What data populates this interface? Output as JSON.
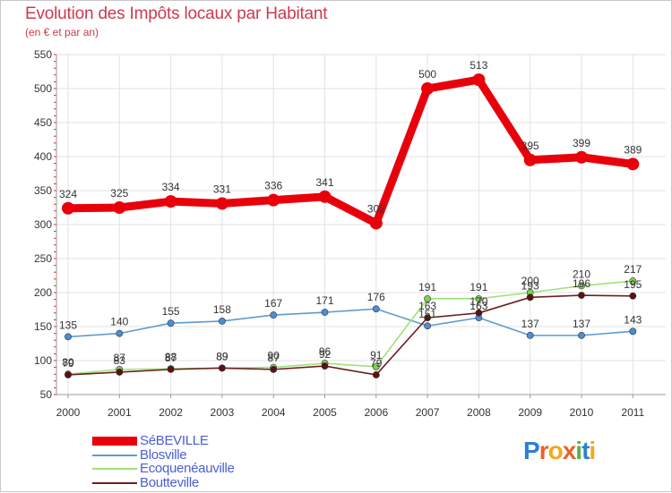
{
  "title": "Evolution des Impôts locaux par Habitant",
  "subtitle": "(en € et par an)",
  "logo": {
    "text": "Proxiti",
    "letter_colors": [
      "#2f7fd1",
      "#e8632c",
      "#f1a81c",
      "#e8632c",
      "#56b53f",
      "#2f7fd1",
      "#f1a81c"
    ]
  },
  "chart_data": {
    "type": "line",
    "title": "Evolution des Impôts locaux par Habitant",
    "subtitle": "(en € et par an)",
    "x": [
      "2000",
      "2001",
      "2002",
      "2003",
      "2004",
      "2005",
      "2006",
      "2007",
      "2008",
      "2009",
      "2010",
      "2011"
    ],
    "ylim": [
      50,
      550
    ],
    "yticks": [
      50,
      100,
      150,
      200,
      250,
      300,
      350,
      400,
      450,
      500,
      550
    ],
    "grid": true,
    "legend_position": "bottom-left",
    "series": [
      {
        "name": "SéBEVILLE",
        "color": "#e8000b",
        "values": [
          324,
          325,
          334,
          331,
          336,
          341,
          302,
          500,
          513,
          395,
          399,
          389
        ]
      },
      {
        "name": "Blosville",
        "color": "#5e9bd0",
        "values": [
          135,
          140,
          155,
          158,
          167,
          171,
          176,
          151,
          163,
          137,
          137,
          143
        ]
      },
      {
        "name": "Ecoquenéauville",
        "color": "#9ee27a",
        "values": [
          80,
          87,
          88,
          89,
          90,
          96,
          91,
          191,
          191,
          200,
          210,
          217
        ]
      },
      {
        "name": "Boutteville",
        "color": "#6b1f1f",
        "values": [
          79,
          83,
          87,
          89,
          87,
          92,
          79,
          163,
          170,
          193,
          196,
          195
        ]
      }
    ]
  }
}
